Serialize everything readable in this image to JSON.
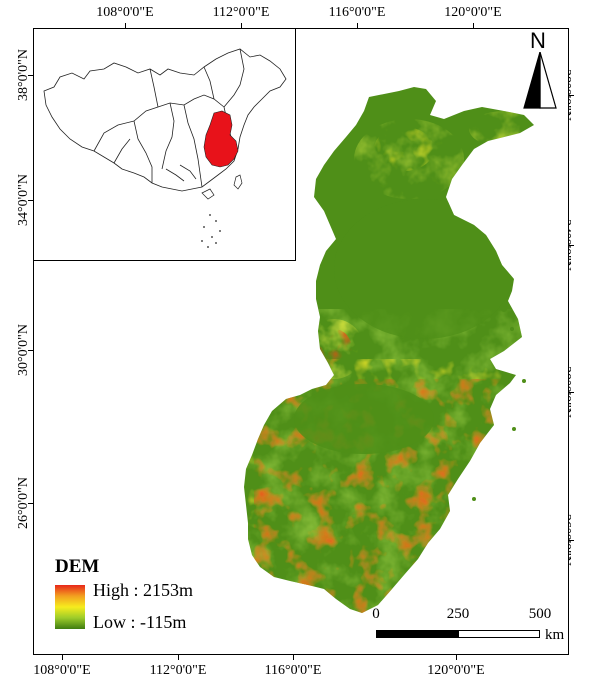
{
  "map": {
    "lon_labels": [
      "108°0'0\"E",
      "112°0'0\"E",
      "116°0'0\"E",
      "120°0'0\"E"
    ],
    "lat_labels_left": [
      "38°0'0\"N",
      "34°0'0\"N",
      "30°0'0\"N",
      "26°0'0\"N"
    ],
    "lat_labels_right": [
      "38°0'0\"N",
      "34°0'0\"N",
      "30°0'0\"N",
      "26°0'0\"N"
    ],
    "colors": {
      "high": "#e8281a",
      "mid": "#f6ec1e",
      "low": "#3f7c10",
      "inset_region": "#e8121a"
    }
  },
  "legend": {
    "title": "DEM",
    "high_label": "High : 2153m",
    "low_label": "Low : -115m"
  },
  "scale_bar": {
    "labels": [
      "0",
      "250",
      "500"
    ],
    "unit": "km"
  },
  "north_arrow": {
    "letter": "N",
    "icon": "north-arrow-icon"
  }
}
